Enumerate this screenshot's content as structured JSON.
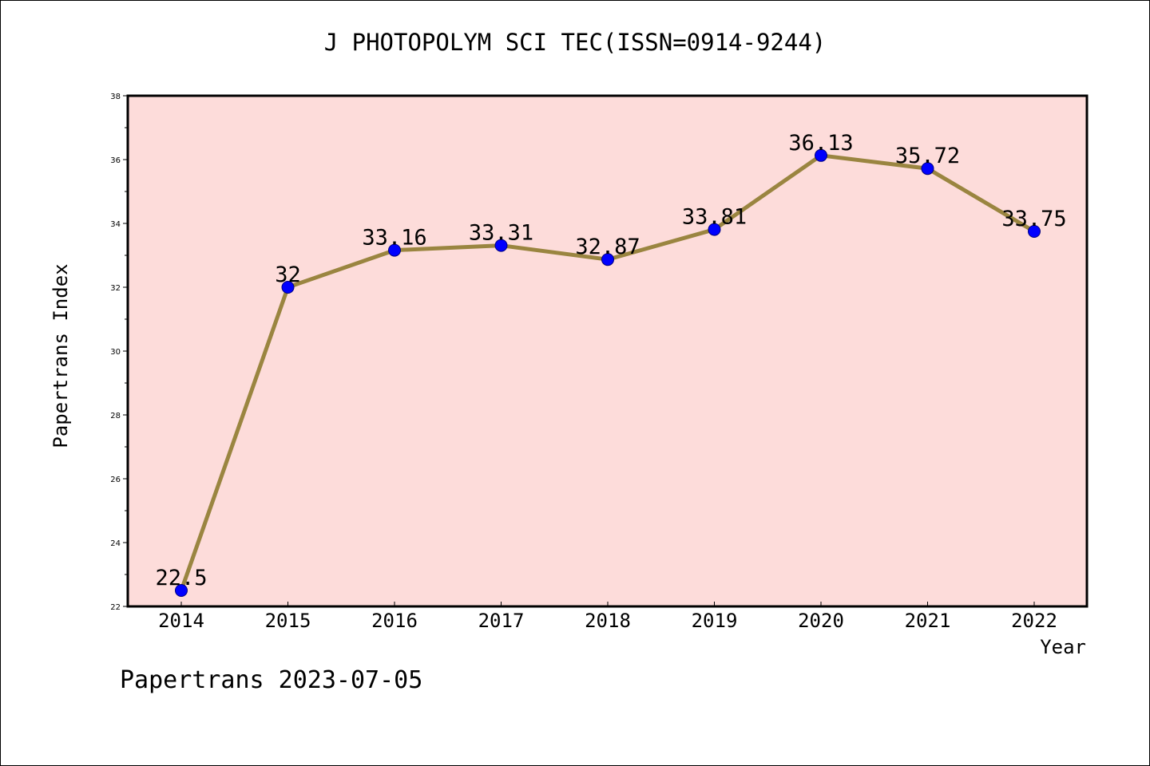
{
  "title": "J PHOTOPOLYM SCI TEC(ISSN=0914-9244)",
  "footer": "Papertrans 2023-07-05",
  "colors": {
    "plot_background": "#FDDCDA",
    "line": "#9A8540",
    "marker": "#0000FF",
    "marker_edge": "#000080"
  },
  "chart_data": {
    "type": "line",
    "title": "J PHOTOPOLYM SCI TEC(ISSN=0914-9244)",
    "xlabel": "Year",
    "ylabel": "Papertrans Index",
    "categories": [
      "2014",
      "2015",
      "2016",
      "2017",
      "2018",
      "2019",
      "2020",
      "2021",
      "2022"
    ],
    "values": [
      22.5,
      32,
      33.16,
      33.31,
      32.87,
      33.81,
      36.13,
      35.72,
      33.75
    ],
    "data_labels": [
      "22.5",
      "32",
      "33.16",
      "33.31",
      "32.87",
      "33.81",
      "36.13",
      "35.72",
      "33.75"
    ],
    "ylim": [
      22,
      38
    ],
    "y_ticks": [
      "22",
      "24",
      "26",
      "28",
      "30",
      "32",
      "34",
      "36",
      "38"
    ],
    "grid": false,
    "legend": "none"
  }
}
